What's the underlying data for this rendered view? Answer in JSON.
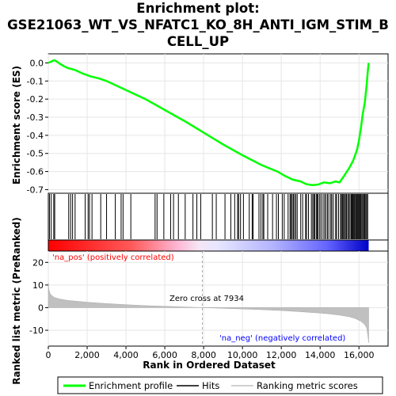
{
  "chart_data": {
    "type": "line",
    "title_line1": "Enrichment plot:",
    "title_line2": "GSE21063_WT_VS_NFATC1_KO_8H_ANTI_IGM_STIM_B",
    "title_line3": "CELL_UP",
    "ylabel_top": "Enrichment score (ES)",
    "ylabel_bottom": "Ranked list metric (PreRanked)",
    "xlabel": "Rank in Ordered Dataset",
    "xlim": [
      0,
      17500
    ],
    "es_ylim": [
      -0.72,
      0.05
    ],
    "metric_ylim": [
      -17,
      25
    ],
    "x_ticks": [
      0,
      2000,
      4000,
      6000,
      8000,
      10000,
      12000,
      14000,
      16000
    ],
    "x_tick_labels": [
      "0",
      "2,000",
      "4,000",
      "6,000",
      "8,000",
      "10,000",
      "12,000",
      "14,000",
      "16,000"
    ],
    "es_ticks": [
      0.0,
      -0.1,
      -0.2,
      -0.3,
      -0.4,
      -0.5,
      -0.6,
      -0.7
    ],
    "es_tick_labels": [
      "0.0",
      "-0.1",
      "-0.2",
      "-0.3",
      "-0.4",
      "-0.5",
      "-0.6",
      "-0.7"
    ],
    "metric_ticks": [
      20,
      10,
      0,
      -10
    ],
    "metric_tick_labels": [
      "20",
      "10",
      "0",
      "-10"
    ],
    "es_curve_x": [
      0,
      100,
      200,
      300,
      400,
      600,
      800,
      1000,
      1400,
      1800,
      2200,
      2600,
      3000,
      4000,
      5000,
      6000,
      7000,
      8000,
      9000,
      10000,
      11000,
      11800,
      12200,
      12600,
      13000,
      13300,
      13600,
      13900,
      14200,
      14500,
      14800,
      15000,
      15200,
      15500,
      15700,
      15900,
      16000,
      16100,
      16200,
      16300,
      16400,
      16450,
      16500
    ],
    "es_curve_y": [
      0.0,
      0.005,
      0.01,
      0.015,
      0.01,
      -0.005,
      -0.018,
      -0.028,
      -0.04,
      -0.06,
      -0.075,
      -0.085,
      -0.1,
      -0.15,
      -0.2,
      -0.26,
      -0.32,
      -0.385,
      -0.45,
      -0.51,
      -0.565,
      -0.6,
      -0.625,
      -0.645,
      -0.655,
      -0.67,
      -0.675,
      -0.672,
      -0.66,
      -0.665,
      -0.655,
      -0.66,
      -0.63,
      -0.58,
      -0.54,
      -0.48,
      -0.43,
      -0.36,
      -0.28,
      -0.22,
      -0.12,
      -0.05,
      0.0
    ],
    "enrichment_profile_color": "#00ff00",
    "hits_x": [
      60,
      150,
      280,
      330,
      1050,
      1150,
      1250,
      1380,
      1900,
      2050,
      2120,
      2250,
      2700,
      3000,
      3450,
      3750,
      3850,
      4250,
      5500,
      5600,
      5950,
      6300,
      6450,
      6700,
      7050,
      7450,
      7650,
      7850,
      8450,
      8650,
      9100,
      9400,
      9600,
      9750,
      9800,
      9900,
      10050,
      10350,
      10500,
      10550,
      10850,
      10950,
      11050,
      11100,
      11300,
      11550,
      11750,
      11850,
      12050,
      12150,
      12350,
      12450,
      12500,
      12560,
      12620,
      12680,
      12750,
      12820,
      13000,
      13100,
      13250,
      13300,
      13400,
      13550,
      13620,
      13680,
      13720,
      13800,
      13850,
      13900,
      13980,
      14050,
      14150,
      14230,
      14300,
      14380,
      14450,
      14550,
      14600,
      14680,
      14800,
      14850,
      14950,
      15050,
      15100,
      15150,
      15200,
      15260,
      15300,
      15360,
      15420,
      15480,
      15540,
      15600,
      15640,
      15680,
      15720,
      15770,
      15820,
      15860,
      15900,
      15940,
      15980,
      16020,
      16060,
      16100,
      16150,
      16200,
      16250,
      16300,
      16350,
      16400,
      16450
    ],
    "zero_cross_rank": 7934,
    "zero_cross_label": "Zero cross at 7934",
    "na_pos_label": "'na_pos' (positively correlated)",
    "na_neg_label": "'na_neg' (negatively correlated)",
    "na_pos_color": "#ff0000",
    "na_neg_color": "#0000ff",
    "metric_curve_x": [
      0,
      30,
      100,
      300,
      600,
      1000,
      2000,
      3000,
      4000,
      5000,
      6000,
      7000,
      7934,
      9000,
      10000,
      11000,
      12000,
      13000,
      14000,
      14500,
      15000,
      15500,
      15800,
      16100,
      16300,
      16400,
      16450,
      16500
    ],
    "metric_curve_y": [
      11,
      8,
      6,
      4.5,
      3.8,
      3.2,
      2.4,
      1.8,
      1.3,
      0.9,
      0.6,
      0.3,
      0.0,
      -0.3,
      -0.6,
      -0.9,
      -1.3,
      -1.8,
      -2.4,
      -2.8,
      -3.3,
      -4.0,
      -4.8,
      -6.0,
      -7.5,
      -9.0,
      -12,
      -15.5
    ],
    "legend": [
      {
        "label": "Enrichment profile",
        "color": "#00ff00"
      },
      {
        "label": "Hits",
        "color": "#000000"
      },
      {
        "label": "Ranking metric scores",
        "color": "#c0c0c0"
      }
    ]
  }
}
